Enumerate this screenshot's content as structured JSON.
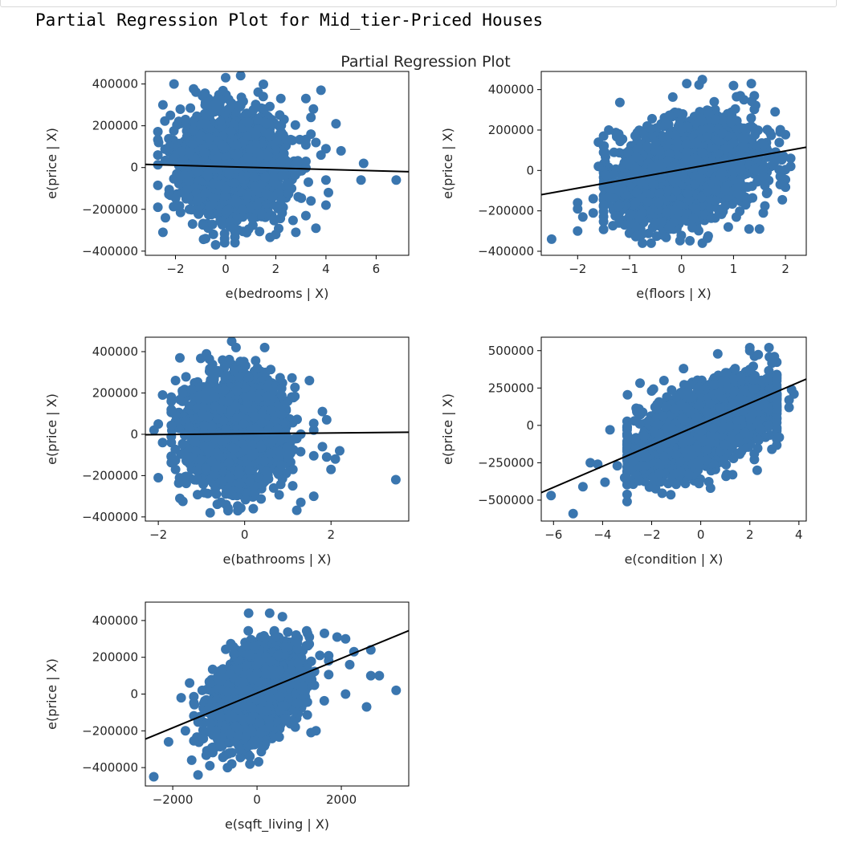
{
  "output": {
    "heading": "Partial Regression Plot for Mid_tier-Priced Houses"
  },
  "colors": {
    "points": "#3a76af",
    "fit_line": "#000000",
    "axis": "#000000",
    "text": "#262626"
  },
  "chart_data": {
    "type": "scatter",
    "title": "Partial Regression Plot",
    "layout": "3x2 grid (5 subplots)",
    "grid": false,
    "subplots": [
      {
        "xlabel": "e(bedrooms | X)",
        "ylabel": "e(price | X)",
        "xlim": [
          -3.2,
          7.3
        ],
        "ylim": [
          -420000,
          460000
        ],
        "xticks": [
          -2,
          0,
          2,
          4,
          6
        ],
        "xtick_labels": [
          "−2",
          "0",
          "2",
          "4",
          "6"
        ],
        "yticks": [
          -400000,
          -200000,
          0,
          200000,
          400000
        ],
        "ytick_labels": [
          "−400000",
          "−200000",
          "0",
          "200000",
          "400000"
        ],
        "fit_line": {
          "x": [
            -3.2,
            7.3
          ],
          "y": [
            15000,
            -20000
          ]
        },
        "cloud": {
          "x_center": 0.3,
          "y_center": 10000,
          "x_sd": 1.0,
          "y_sd": 120000,
          "corr": -0.05,
          "n": 2200,
          "x_range": [
            -2.7,
            3.2
          ],
          "y_range": [
            -360000,
            400000
          ]
        },
        "points": [
          [
            -2.5,
            300000
          ],
          [
            -2.7,
            -190000
          ],
          [
            -2.5,
            -310000
          ],
          [
            -2.4,
            -240000
          ],
          [
            -2.2,
            250000
          ],
          [
            -1.6,
            230000
          ],
          [
            0,
            430000
          ],
          [
            0.6,
            440000
          ],
          [
            1.5,
            340000
          ],
          [
            2.2,
            330000
          ],
          [
            3.2,
            330000
          ],
          [
            3.4,
            240000
          ],
          [
            3.4,
            160000
          ],
          [
            3.8,
            370000
          ],
          [
            3.5,
            280000
          ],
          [
            3.6,
            120000
          ],
          [
            3.3,
            -70000
          ],
          [
            3.8,
            60000
          ],
          [
            4.0,
            90000
          ],
          [
            4.4,
            210000
          ],
          [
            4.6,
            80000
          ],
          [
            4.0,
            -60000
          ],
          [
            4.0,
            -180000
          ],
          [
            4.1,
            -120000
          ],
          [
            5.5,
            20000
          ],
          [
            5.4,
            -60000
          ],
          [
            6.8,
            -60000
          ],
          [
            3.4,
            -160000
          ],
          [
            3.2,
            -230000
          ],
          [
            3.6,
            -290000
          ],
          [
            2.8,
            -310000
          ],
          [
            2.0,
            -320000
          ],
          [
            -0.8,
            -340000
          ],
          [
            -0.4,
            -370000
          ]
        ]
      },
      {
        "xlabel": "e(floors | X)",
        "ylabel": "e(price | X)",
        "xlim": [
          -2.7,
          2.4
        ],
        "ylim": [
          -420000,
          490000
        ],
        "xticks": [
          -2,
          -1,
          0,
          1,
          2
        ],
        "xtick_labels": [
          "−2",
          "−1",
          "0",
          "1",
          "2"
        ],
        "yticks": [
          -400000,
          -200000,
          0,
          200000,
          400000
        ],
        "ytick_labels": [
          "−400000",
          "−200000",
          "0",
          "200000",
          "400000"
        ],
        "fit_line": {
          "x": [
            -2.7,
            2.4
          ],
          "y": [
            -120000,
            115000
          ]
        },
        "cloud": {
          "x_center": 0.1,
          "y_center": 0,
          "x_sd": 0.65,
          "y_sd": 120000,
          "corr": 0.3,
          "n": 2600,
          "x_range": [
            -1.5,
            2.0
          ],
          "y_range": [
            -360000,
            430000
          ]
        },
        "points": [
          [
            -2.5,
            -340000
          ],
          [
            -2.0,
            -160000
          ],
          [
            -2.0,
            -190000
          ],
          [
            -1.9,
            -230000
          ],
          [
            -2.0,
            -300000
          ],
          [
            -1.6,
            140000
          ],
          [
            -1.7,
            -210000
          ],
          [
            -1.6,
            20000
          ],
          [
            -1.4,
            200000
          ],
          [
            -1.5,
            170000
          ],
          [
            -1.3,
            90000
          ],
          [
            -1.3,
            -20000
          ],
          [
            -1.4,
            -130000
          ],
          [
            -1.7,
            -140000
          ],
          [
            0.1,
            430000
          ],
          [
            0.4,
            450000
          ],
          [
            1.0,
            420000
          ],
          [
            1.2,
            350000
          ],
          [
            1.4,
            370000
          ],
          [
            1.8,
            290000
          ],
          [
            1.9,
            190000
          ],
          [
            2.1,
            60000
          ],
          [
            2.1,
            20000
          ],
          [
            1.9,
            -30000
          ],
          [
            1.9,
            -70000
          ],
          [
            1.5,
            -290000
          ],
          [
            1.3,
            -290000
          ],
          [
            0.9,
            -280000
          ],
          [
            0.4,
            -360000
          ]
        ]
      },
      {
        "xlabel": "e(bathrooms | X)",
        "ylabel": "e(price | X)",
        "xlim": [
          -2.3,
          3.8
        ],
        "ylim": [
          -420000,
          470000
        ],
        "xticks": [
          -2,
          0,
          2
        ],
        "xtick_labels": [
          "−2",
          "0",
          "2"
        ],
        "yticks": [
          -400000,
          -200000,
          0,
          200000,
          400000
        ],
        "ytick_labels": [
          "−400000",
          "−200000",
          "0",
          "200000",
          "400000"
        ],
        "fit_line": {
          "x": [
            -2.3,
            3.8
          ],
          "y": [
            -2000,
            10000
          ]
        },
        "cloud": {
          "x_center": -0.2,
          "y_center": 10000,
          "x_sd": 0.55,
          "y_sd": 125000,
          "corr": 0.0,
          "n": 2300,
          "x_range": [
            -1.7,
            1.6
          ],
          "y_range": [
            -370000,
            420000
          ]
        },
        "points": [
          [
            -2.0,
            50000
          ],
          [
            -2.0,
            -210000
          ],
          [
            -1.9,
            -40000
          ],
          [
            -2.1,
            20000
          ],
          [
            -1.9,
            190000
          ],
          [
            -1.7,
            180000
          ],
          [
            -1.7,
            -40000
          ],
          [
            -1.5,
            370000
          ],
          [
            -1.6,
            260000
          ],
          [
            -1.6,
            -170000
          ],
          [
            -1.5,
            -310000
          ],
          [
            -0.3,
            450000
          ],
          [
            -0.2,
            420000
          ],
          [
            1.5,
            260000
          ],
          [
            1.8,
            110000
          ],
          [
            1.9,
            70000
          ],
          [
            1.8,
            -60000
          ],
          [
            1.9,
            -110000
          ],
          [
            2.0,
            -170000
          ],
          [
            2.1,
            -120000
          ],
          [
            2.2,
            -80000
          ],
          [
            3.5,
            -220000
          ],
          [
            1.6,
            -300000
          ],
          [
            1.3,
            -330000
          ],
          [
            0.2,
            -360000
          ],
          [
            -0.8,
            -380000
          ]
        ]
      },
      {
        "xlabel": "e(condition | X)",
        "ylabel": "e(price | X)",
        "xlim": [
          -6.5,
          4.3
        ],
        "ylim": [
          -640000,
          590000
        ],
        "xticks": [
          -6,
          -4,
          -2,
          0,
          2,
          4
        ],
        "xtick_labels": [
          "−6",
          "−4",
          "−2",
          "0",
          "2",
          "4"
        ],
        "yticks": [
          -500000,
          -250000,
          0,
          250000,
          500000
        ],
        "ytick_labels": [
          "−500000",
          "−250000",
          "0",
          "250000",
          "500000"
        ],
        "fit_line": {
          "x": [
            -6.5,
            4.3
          ],
          "y": [
            -450000,
            310000
          ]
        },
        "cloud": {
          "x_center": 0.2,
          "y_center": 0,
          "x_sd": 1.35,
          "y_sd": 150000,
          "corr": 0.55,
          "n": 2600,
          "x_range": [
            -3.0,
            3.1
          ],
          "y_range": [
            -500000,
            520000
          ]
        },
        "points": [
          [
            -6.1,
            -470000
          ],
          [
            -5.2,
            -590000
          ],
          [
            -4.8,
            -410000
          ],
          [
            -4.5,
            -250000
          ],
          [
            -4.2,
            -260000
          ],
          [
            -3.9,
            -380000
          ],
          [
            -3.7,
            -30000
          ],
          [
            -3.4,
            -270000
          ],
          [
            -3.0,
            -60000
          ],
          [
            -3.1,
            -350000
          ],
          [
            -3.0,
            -510000
          ],
          [
            -2.7,
            30000
          ],
          [
            -2.6,
            90000
          ],
          [
            -2.0,
            230000
          ],
          [
            -1.5,
            300000
          ],
          [
            -0.7,
            380000
          ],
          [
            1.4,
            380000
          ],
          [
            2.0,
            500000
          ],
          [
            2.0,
            520000
          ],
          [
            3.0,
            460000
          ],
          [
            3.7,
            240000
          ],
          [
            3.8,
            210000
          ],
          [
            3.6,
            170000
          ],
          [
            3.6,
            120000
          ],
          [
            3.2,
            -80000
          ],
          [
            2.9,
            -160000
          ],
          [
            2.3,
            -300000
          ],
          [
            1.3,
            -330000
          ],
          [
            0.4,
            -420000
          ]
        ]
      },
      {
        "xlabel": "e(sqft_living | X)",
        "ylabel": "e(price | X)",
        "xlim": [
          -2650,
          3600
        ],
        "ylim": [
          -500000,
          500000
        ],
        "xticks": [
          -2000,
          0,
          2000
        ],
        "xtick_labels": [
          "−2000",
          "0",
          "2000"
        ],
        "yticks": [
          -400000,
          -200000,
          0,
          200000,
          400000
        ],
        "ytick_labels": [
          "−400000",
          "−200000",
          "0",
          "200000",
          "400000"
        ],
        "fit_line": {
          "x": [
            -2650,
            3600
          ],
          "y": [
            -245000,
            345000
          ]
        },
        "cloud": {
          "x_center": 0,
          "y_center": 0,
          "x_sd": 500,
          "y_sd": 120000,
          "corr": 0.4,
          "n": 2600,
          "x_range": [
            -1500,
            1700
          ],
          "y_range": [
            -390000,
            430000
          ]
        },
        "points": [
          [
            -2450,
            -450000
          ],
          [
            -2100,
            -260000
          ],
          [
            -1800,
            -20000
          ],
          [
            -1700,
            -200000
          ],
          [
            -1600,
            60000
          ],
          [
            -1550,
            -360000
          ],
          [
            -1400,
            -440000
          ],
          [
            -1300,
            20000
          ],
          [
            -700,
            -400000
          ],
          [
            -600,
            -380000
          ],
          [
            -200,
            440000
          ],
          [
            300,
            440000
          ],
          [
            1200,
            330000
          ],
          [
            1600,
            330000
          ],
          [
            1900,
            310000
          ],
          [
            2100,
            300000
          ],
          [
            2200,
            160000
          ],
          [
            2300,
            230000
          ],
          [
            2700,
            240000
          ],
          [
            2700,
            100000
          ],
          [
            2100,
            0
          ],
          [
            2600,
            -70000
          ],
          [
            3300,
            20000
          ],
          [
            2900,
            100000
          ],
          [
            1400,
            -200000
          ]
        ]
      }
    ]
  }
}
